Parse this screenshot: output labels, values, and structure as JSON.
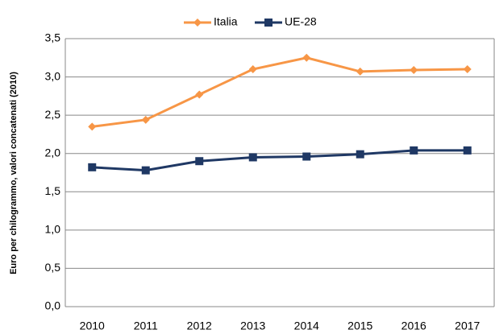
{
  "chart_data": {
    "type": "line",
    "y_label": "Euro per chilogrammo, valori concatenati (2010)",
    "categories": [
      "2010",
      "2011",
      "2012",
      "2013",
      "2014",
      "2015",
      "2016",
      "2017"
    ],
    "series": [
      {
        "name": "Italia",
        "color": "#f79646",
        "marker": "diamond",
        "values": [
          2.35,
          2.44,
          2.77,
          3.1,
          3.25,
          3.07,
          3.09,
          3.1
        ]
      },
      {
        "name": "UE-28",
        "color": "#1f3864",
        "marker": "square",
        "values": [
          1.82,
          1.78,
          1.9,
          1.95,
          1.96,
          1.99,
          2.04,
          2.04
        ]
      }
    ],
    "ylim": [
      0,
      3.5
    ],
    "yticks": [
      {
        "value": 0,
        "label": "0,0"
      },
      {
        "value": 0.5,
        "label": "0,5"
      },
      {
        "value": 1,
        "label": "1,0"
      },
      {
        "value": 1.5,
        "label": "1,5"
      },
      {
        "value": 2,
        "label": "2,0"
      },
      {
        "value": 2.5,
        "label": "2,5"
      },
      {
        "value": 3,
        "label": "3,0"
      },
      {
        "value": 3.5,
        "label": "3,5"
      }
    ],
    "grid": true,
    "legend": "top"
  }
}
